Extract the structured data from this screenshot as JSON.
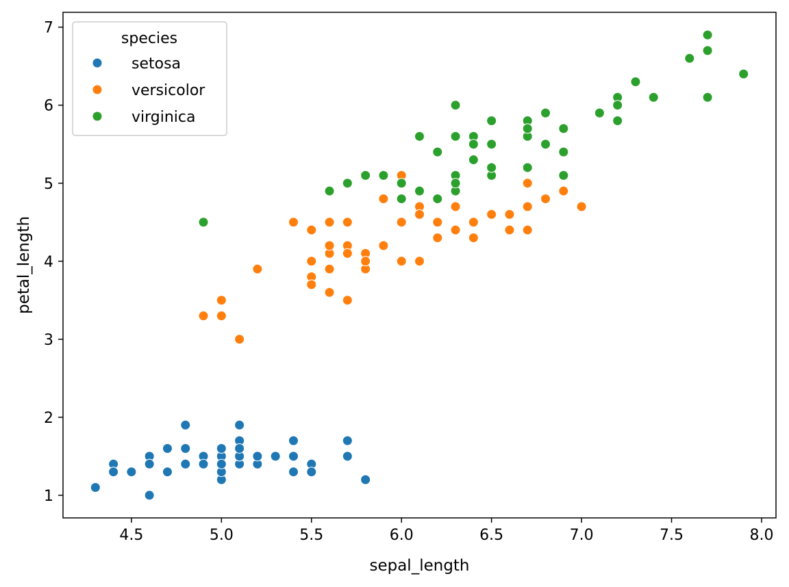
{
  "chart_data": {
    "type": "scatter",
    "title": "",
    "xlabel": "sepal_length",
    "ylabel": "petal_length",
    "xlim": [
      4.12,
      8.08
    ],
    "ylim": [
      0.71,
      7.19
    ],
    "xticks": [
      4.5,
      5.0,
      5.5,
      6.0,
      6.5,
      7.0,
      7.5,
      8.0
    ],
    "xtick_labels": [
      "4.5",
      "5.0",
      "5.5",
      "6.0",
      "6.5",
      "7.0",
      "7.5",
      "8.0"
    ],
    "yticks": [
      1,
      2,
      3,
      4,
      5,
      6,
      7
    ],
    "ytick_labels": [
      "1",
      "2",
      "3",
      "4",
      "5",
      "6",
      "7"
    ],
    "grid": false,
    "legend": {
      "title": "species",
      "position": "top-left"
    },
    "series": [
      {
        "name": "setosa",
        "color": "#1f77b4",
        "points": [
          [
            5.1,
            1.4
          ],
          [
            4.9,
            1.4
          ],
          [
            4.7,
            1.3
          ],
          [
            4.6,
            1.5
          ],
          [
            5.0,
            1.4
          ],
          [
            5.4,
            1.7
          ],
          [
            4.6,
            1.4
          ],
          [
            5.0,
            1.5
          ],
          [
            4.4,
            1.4
          ],
          [
            4.9,
            1.5
          ],
          [
            5.4,
            1.5
          ],
          [
            4.8,
            1.6
          ],
          [
            4.8,
            1.4
          ],
          [
            4.3,
            1.1
          ],
          [
            5.8,
            1.2
          ],
          [
            5.7,
            1.5
          ],
          [
            5.4,
            1.3
          ],
          [
            5.1,
            1.4
          ],
          [
            5.7,
            1.7
          ],
          [
            5.1,
            1.5
          ],
          [
            5.4,
            1.7
          ],
          [
            5.1,
            1.5
          ],
          [
            4.6,
            1.0
          ],
          [
            5.1,
            1.7
          ],
          [
            4.8,
            1.9
          ],
          [
            5.0,
            1.6
          ],
          [
            5.0,
            1.6
          ],
          [
            5.2,
            1.5
          ],
          [
            5.2,
            1.4
          ],
          [
            4.7,
            1.6
          ],
          [
            4.8,
            1.6
          ],
          [
            5.4,
            1.5
          ],
          [
            5.2,
            1.5
          ],
          [
            5.5,
            1.4
          ],
          [
            4.9,
            1.5
          ],
          [
            5.0,
            1.2
          ],
          [
            5.5,
            1.3
          ],
          [
            4.9,
            1.4
          ],
          [
            4.4,
            1.3
          ],
          [
            5.1,
            1.5
          ],
          [
            5.0,
            1.3
          ],
          [
            4.5,
            1.3
          ],
          [
            4.4,
            1.3
          ],
          [
            5.0,
            1.6
          ],
          [
            5.1,
            1.9
          ],
          [
            4.8,
            1.4
          ],
          [
            5.1,
            1.6
          ],
          [
            4.6,
            1.4
          ],
          [
            5.3,
            1.5
          ],
          [
            5.0,
            1.4
          ]
        ]
      },
      {
        "name": "versicolor",
        "color": "#ff7f0e",
        "points": [
          [
            7.0,
            4.7
          ],
          [
            6.4,
            4.5
          ],
          [
            6.9,
            4.9
          ],
          [
            5.5,
            4.0
          ],
          [
            6.5,
            4.6
          ],
          [
            5.7,
            4.5
          ],
          [
            6.3,
            4.7
          ],
          [
            4.9,
            3.3
          ],
          [
            6.6,
            4.6
          ],
          [
            5.2,
            3.9
          ],
          [
            5.0,
            3.5
          ],
          [
            5.9,
            4.2
          ],
          [
            6.0,
            4.0
          ],
          [
            6.1,
            4.7
          ],
          [
            5.6,
            3.6
          ],
          [
            6.7,
            4.4
          ],
          [
            5.6,
            4.5
          ],
          [
            5.8,
            4.1
          ],
          [
            6.2,
            4.5
          ],
          [
            5.6,
            3.9
          ],
          [
            5.9,
            4.8
          ],
          [
            6.1,
            4.0
          ],
          [
            6.3,
            4.9
          ],
          [
            6.1,
            4.7
          ],
          [
            6.4,
            4.3
          ],
          [
            6.6,
            4.4
          ],
          [
            6.8,
            4.8
          ],
          [
            6.7,
            5.0
          ],
          [
            6.0,
            4.5
          ],
          [
            5.7,
            3.5
          ],
          [
            5.5,
            3.8
          ],
          [
            5.5,
            3.7
          ],
          [
            5.8,
            3.9
          ],
          [
            6.0,
            5.1
          ],
          [
            5.4,
            4.5
          ],
          [
            6.0,
            4.5
          ],
          [
            6.7,
            4.7
          ],
          [
            6.3,
            4.4
          ],
          [
            5.6,
            4.1
          ],
          [
            5.5,
            4.0
          ],
          [
            5.5,
            4.4
          ],
          [
            6.1,
            4.6
          ],
          [
            5.8,
            4.0
          ],
          [
            5.0,
            3.3
          ],
          [
            5.6,
            4.2
          ],
          [
            5.7,
            4.2
          ],
          [
            5.7,
            4.2
          ],
          [
            6.2,
            4.3
          ],
          [
            5.1,
            3.0
          ],
          [
            5.7,
            4.1
          ]
        ]
      },
      {
        "name": "virginica",
        "color": "#2ca02c",
        "points": [
          [
            6.3,
            6.0
          ],
          [
            5.8,
            5.1
          ],
          [
            7.1,
            5.9
          ],
          [
            6.3,
            5.6
          ],
          [
            6.5,
            5.8
          ],
          [
            7.6,
            6.6
          ],
          [
            4.9,
            4.5
          ],
          [
            7.3,
            6.3
          ],
          [
            6.7,
            5.8
          ],
          [
            7.2,
            6.1
          ],
          [
            6.5,
            5.1
          ],
          [
            6.4,
            5.3
          ],
          [
            6.8,
            5.5
          ],
          [
            5.7,
            5.0
          ],
          [
            5.8,
            5.1
          ],
          [
            6.4,
            5.3
          ],
          [
            6.5,
            5.5
          ],
          [
            7.7,
            6.7
          ],
          [
            7.7,
            6.9
          ],
          [
            6.0,
            5.0
          ],
          [
            6.9,
            5.7
          ],
          [
            5.6,
            4.9
          ],
          [
            7.7,
            6.7
          ],
          [
            6.3,
            4.9
          ],
          [
            6.7,
            5.7
          ],
          [
            7.2,
            6.0
          ],
          [
            6.2,
            4.8
          ],
          [
            6.1,
            4.9
          ],
          [
            6.4,
            5.6
          ],
          [
            7.2,
            5.8
          ],
          [
            7.4,
            6.1
          ],
          [
            7.9,
            6.4
          ],
          [
            6.4,
            5.6
          ],
          [
            6.3,
            5.1
          ],
          [
            6.1,
            5.6
          ],
          [
            7.7,
            6.1
          ],
          [
            6.3,
            5.6
          ],
          [
            6.4,
            5.5
          ],
          [
            6.0,
            4.8
          ],
          [
            6.9,
            5.4
          ],
          [
            6.7,
            5.6
          ],
          [
            6.9,
            5.1
          ],
          [
            5.8,
            5.1
          ],
          [
            6.8,
            5.9
          ],
          [
            6.7,
            5.7
          ],
          [
            6.7,
            5.2
          ],
          [
            6.3,
            5.0
          ],
          [
            6.5,
            5.2
          ],
          [
            6.2,
            5.4
          ],
          [
            5.9,
            5.1
          ]
        ]
      }
    ]
  }
}
